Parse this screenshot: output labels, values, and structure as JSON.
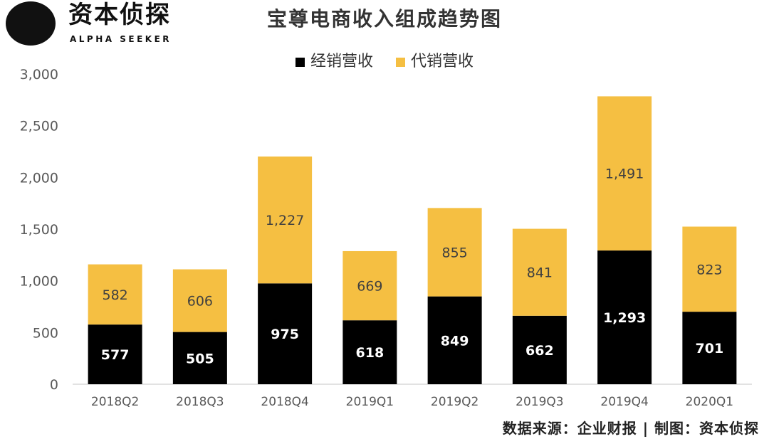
{
  "logo": {
    "text_cn": "资本侦探",
    "text_en": "ALPHA SEEKER"
  },
  "footer": {
    "source": "数据来源：企业财报 | 制图：资本侦探"
  },
  "chart_data": {
    "type": "bar",
    "stacked": true,
    "title": "宝尊电商收入组成趋势图",
    "xlabel": "",
    "ylabel": "",
    "ylim": [
      0,
      3000
    ],
    "yticks": [
      "0",
      "500",
      "1,000",
      "1,500",
      "2,000",
      "2,500",
      "3,000"
    ],
    "ytick_values": [
      0,
      500,
      1000,
      1500,
      2000,
      2500,
      3000
    ],
    "grid": false,
    "legend_position": "top",
    "categories": [
      "2018Q2",
      "2018Q3",
      "2018Q4",
      "2019Q1",
      "2019Q2",
      "2019Q3",
      "2019Q4",
      "2020Q1"
    ],
    "series": [
      {
        "name": "经销营收",
        "color": "#000000",
        "label_color": "#ffffff",
        "values": [
          577,
          505,
          975,
          618,
          849,
          662,
          1293,
          701
        ],
        "labels": [
          "577",
          "505",
          "975",
          "618",
          "849",
          "662",
          "1,293",
          "701"
        ]
      },
      {
        "name": "代销营收",
        "color": "#F5BF42",
        "label_color": "#404040",
        "values": [
          582,
          606,
          1227,
          669,
          855,
          841,
          1491,
          823
        ],
        "labels": [
          "582",
          "606",
          "1,227",
          "669",
          "855",
          "841",
          "1,491",
          "823"
        ]
      }
    ]
  }
}
